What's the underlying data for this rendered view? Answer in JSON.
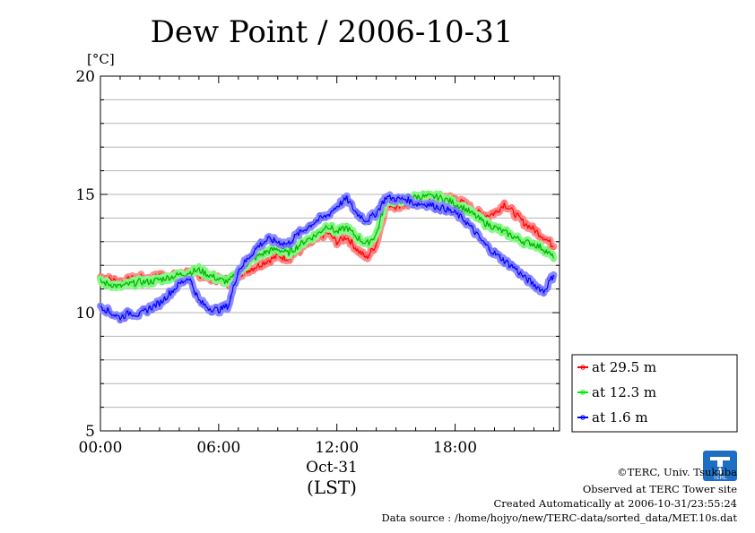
{
  "chart_data": {
    "type": "line",
    "title": "Dew Point / 2006-10-31",
    "ylabel": "[°C]",
    "xlabel": "(LST)",
    "date_label": "Oct-31",
    "x_ticks": [
      "00:00",
      "06:00",
      "12:00",
      "18:00"
    ],
    "x_tick_hours": [
      0,
      6,
      12,
      18
    ],
    "y_ticks": [
      "5",
      "10",
      "15",
      "20"
    ],
    "y_tick_values": [
      5,
      10,
      15,
      20
    ],
    "xlim": [
      0,
      23.3
    ],
    "ylim": [
      5,
      20
    ],
    "grid": true,
    "legend_position": "right",
    "series": [
      {
        "name": "at 29.5 m",
        "color": "#ff0000",
        "x": [
          0,
          0.5,
          1,
          1.5,
          2,
          2.5,
          3,
          3.5,
          4,
          4.5,
          5,
          5.5,
          6,
          6.5,
          7,
          7.5,
          8,
          8.5,
          9,
          9.5,
          10,
          10.5,
          11,
          11.5,
          12,
          12.5,
          13,
          13.5,
          14,
          14.5,
          15,
          15.5,
          16,
          16.5,
          17,
          17.5,
          18,
          18.5,
          19,
          19.5,
          20,
          20.5,
          21,
          21.5,
          22,
          22.5,
          23
        ],
        "y": [
          11.5,
          11.4,
          11.3,
          11.4,
          11.5,
          11.4,
          11.6,
          11.5,
          11.6,
          11.7,
          11.6,
          11.5,
          11.4,
          11.3,
          11.6,
          11.8,
          12.0,
          12.2,
          12.4,
          12.3,
          12.6,
          12.9,
          13.1,
          13.4,
          13.0,
          13.2,
          12.7,
          12.3,
          12.9,
          14.6,
          14.5,
          14.6,
          14.6,
          14.7,
          14.8,
          14.9,
          14.8,
          14.6,
          14.3,
          14.1,
          14.2,
          14.6,
          14.2,
          13.8,
          13.5,
          13.2,
          12.8
        ]
      },
      {
        "name": "at 12.3 m",
        "color": "#00ee00",
        "x": [
          0,
          0.5,
          1,
          1.5,
          2,
          2.5,
          3,
          3.5,
          4,
          4.5,
          5,
          5.5,
          6,
          6.5,
          7,
          7.5,
          8,
          8.5,
          9,
          9.5,
          10,
          10.5,
          11,
          11.5,
          12,
          12.5,
          13,
          13.5,
          14,
          14.5,
          15,
          15.5,
          16,
          16.5,
          17,
          17.5,
          18,
          18.5,
          19,
          19.5,
          20,
          20.5,
          21,
          21.5,
          22,
          22.5,
          23
        ],
        "y": [
          11.3,
          11.2,
          11.1,
          11.2,
          11.3,
          11.3,
          11.4,
          11.5,
          11.6,
          11.7,
          11.8,
          11.6,
          11.4,
          11.3,
          11.7,
          12.1,
          12.4,
          12.6,
          12.7,
          12.5,
          12.8,
          13.1,
          13.3,
          13.7,
          13.4,
          13.6,
          13.2,
          12.9,
          13.3,
          14.8,
          14.7,
          14.8,
          14.9,
          14.9,
          14.9,
          14.8,
          14.6,
          14.4,
          14.1,
          13.8,
          13.6,
          13.4,
          13.2,
          13.0,
          12.9,
          12.7,
          12.3
        ]
      },
      {
        "name": "at 1.6 m",
        "color": "#0000ff",
        "x": [
          0,
          0.5,
          1,
          1.5,
          2,
          2.5,
          3,
          3.5,
          4,
          4.5,
          5,
          5.5,
          6,
          6.5,
          7,
          7.5,
          8,
          8.5,
          9,
          9.5,
          10,
          10.5,
          11,
          11.5,
          12,
          12.5,
          13,
          13.5,
          14,
          14.5,
          15,
          15.5,
          16,
          16.5,
          17,
          17.5,
          18,
          18.5,
          19,
          19.5,
          20,
          20.5,
          21,
          21.5,
          22,
          22.5,
          23
        ],
        "y": [
          10.3,
          10.0,
          9.8,
          10.0,
          9.9,
          10.2,
          10.4,
          10.8,
          11.2,
          11.5,
          10.5,
          10.2,
          10.1,
          10.3,
          11.8,
          12.3,
          12.8,
          13.1,
          13.0,
          12.9,
          13.3,
          13.6,
          13.9,
          14.1,
          14.5,
          14.8,
          14.2,
          13.9,
          14.2,
          14.9,
          14.8,
          14.8,
          14.6,
          14.6,
          14.5,
          14.4,
          14.2,
          13.9,
          13.4,
          12.9,
          12.5,
          12.2,
          11.9,
          11.5,
          11.2,
          10.9,
          11.6
        ]
      }
    ]
  },
  "footer": {
    "copyright": "©TERC, Univ. Tsukuba",
    "site": "Observed at TERC Tower site",
    "created": "Created Automatically at 2006-10-31/23:55:24",
    "source": "Data source : /home/hojyo/new/TERC-data/sorted_data/MET.10s.dat"
  },
  "logo": {
    "text": "TERC"
  }
}
